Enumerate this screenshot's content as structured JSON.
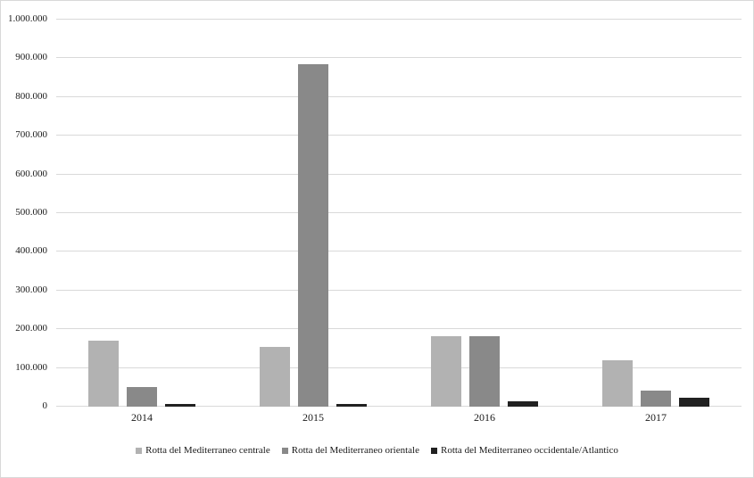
{
  "chart_data": {
    "type": "bar",
    "title": "",
    "xlabel": "",
    "ylabel": "",
    "categories": [
      "2014",
      "2015",
      "2016",
      "2017"
    ],
    "series": [
      {
        "key": "centrale",
        "name": "Rotta del Mediterraneo centrale",
        "color": "#b2b2b2",
        "values": [
          170000,
          154000,
          181000,
          119000
        ]
      },
      {
        "key": "orientale",
        "name": "Rotta del Mediterraneo orientale",
        "color": "#898989",
        "values": [
          51000,
          885000,
          182000,
          42000
        ]
      },
      {
        "key": "occidentale-atlantico",
        "name": "Rotta del Mediterraneo occidentale/Atlantico",
        "color": "#212121",
        "values": [
          8000,
          7000,
          14000,
          23000
        ]
      }
    ],
    "ylim": [
      0,
      1000000
    ],
    "y_tick_labels": [
      "0",
      "100.000",
      "200.000",
      "300.000",
      "400.000",
      "500.000",
      "600.000",
      "700.000",
      "800.000",
      "900.000",
      "1.000.000"
    ],
    "grid": true,
    "legend_position": "bottom"
  },
  "colors": {
    "background": "#ffffff",
    "frame_border": "#d9d9d9",
    "gridline": "#d9d9d9",
    "text": "#1a1a1a"
  }
}
